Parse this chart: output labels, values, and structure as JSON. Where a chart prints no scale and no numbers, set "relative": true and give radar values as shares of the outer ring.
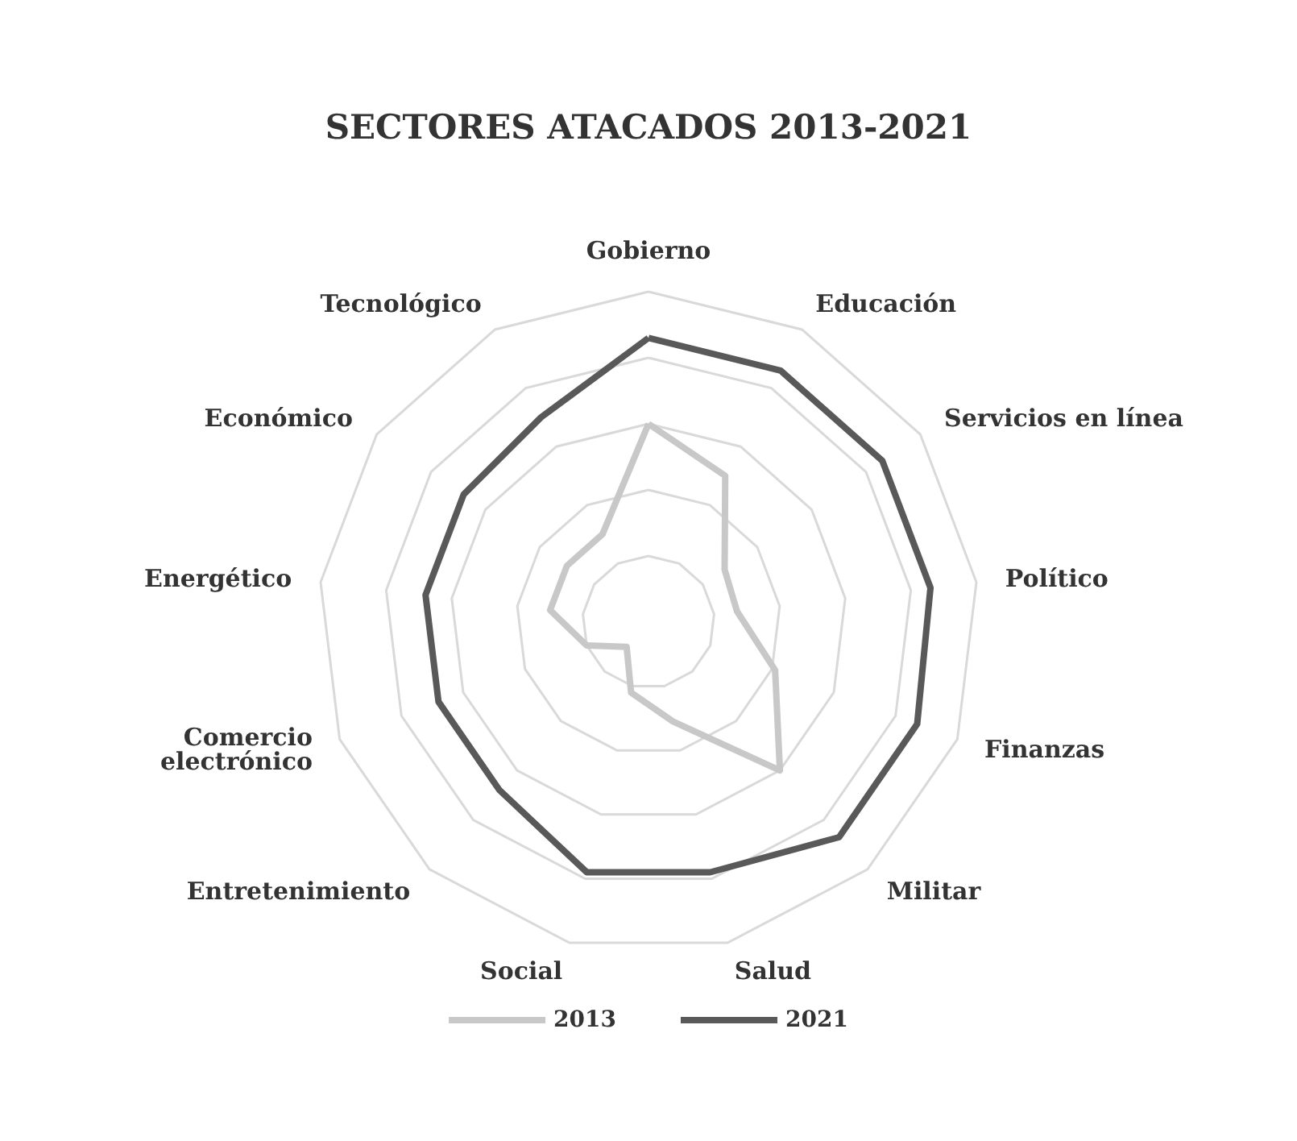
{
  "chart_data": {
    "type": "radar",
    "title": "SECTORES ATACADOS 2013-2021",
    "relative": true,
    "legend": "bottom",
    "categories": [
      "Gobierno",
      "Educación",
      "Servicios en línea",
      "Político",
      "Finanzas",
      "Militar",
      "Salud",
      "Social",
      "Entretenimiento",
      "Comercio\nelectrónico",
      "Energético",
      "Económico",
      "Tecnológico"
    ],
    "series": [
      {
        "name": "2013",
        "color": "#c8c8c8",
        "values": [
          0.6,
          0.5,
          0.28,
          0.27,
          0.41,
          0.6,
          0.31,
          0.22,
          0.1,
          0.2,
          0.3,
          0.3,
          0.3
        ]
      },
      {
        "name": "2021",
        "color": "#595959",
        "values": [
          0.86,
          0.86,
          0.86,
          0.86,
          0.87,
          0.87,
          0.78,
          0.78,
          0.68,
          0.68,
          0.68,
          0.68,
          0.7
        ]
      }
    ]
  }
}
